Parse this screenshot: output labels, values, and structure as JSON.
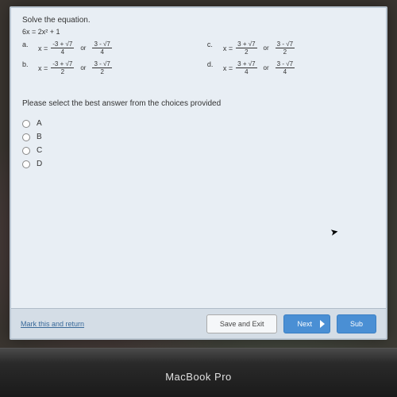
{
  "question": {
    "title": "Solve the equation.",
    "equation": "6x = 2x² + 1",
    "options": {
      "a": {
        "letter": "a.",
        "num1": "-3 + √7",
        "den1": "4",
        "num2": "3 - √7",
        "den2": "4"
      },
      "b": {
        "letter": "b.",
        "num1": "-3 + √7",
        "den1": "2",
        "num2": "3 - √7",
        "den2": "2"
      },
      "c": {
        "letter": "c.",
        "num1": "3 + √7",
        "den1": "2",
        "num2": "3 - √7",
        "den2": "2"
      },
      "d": {
        "letter": "d.",
        "num1": "3 + √7",
        "den1": "4",
        "num2": "3 - √7",
        "den2": "4"
      }
    },
    "x_equals": "x =",
    "or_text": "or",
    "instruction": "Please select the best answer from the choices provided",
    "choices": {
      "a": "A",
      "b": "B",
      "c": "C",
      "d": "D"
    }
  },
  "buttons": {
    "mark_link": "Mark this and return",
    "save": "Save and Exit",
    "next": "Next",
    "submit": "Sub"
  },
  "laptop": {
    "label": "MacBook Pro"
  },
  "colors": {
    "screen_bg": "#e8eef4",
    "bar_bg": "#d4dde6",
    "primary_btn": "#4a8fd4",
    "link": "#3a6a9a"
  }
}
